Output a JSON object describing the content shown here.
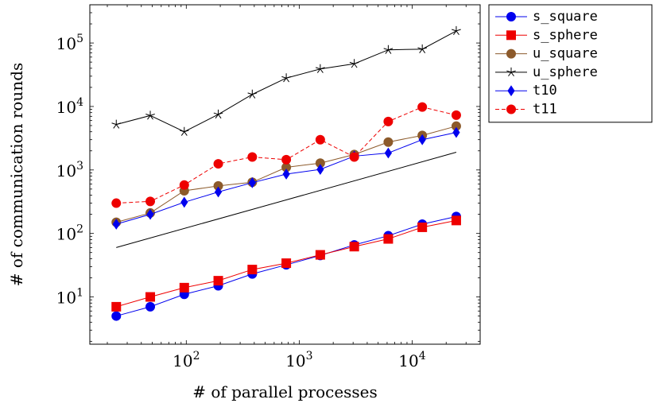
{
  "chart_data": {
    "type": "line",
    "xlabel": "# of parallel processes",
    "ylabel": "# of communication rounds",
    "xscale": "log",
    "yscale": "log",
    "xlim": [
      14,
      40000
    ],
    "ylim": [
      1.8,
      400000
    ],
    "x_ticks": [
      {
        "value": 100,
        "base": "10",
        "exp": "2"
      },
      {
        "value": 1000,
        "base": "10",
        "exp": "3"
      },
      {
        "value": 10000,
        "base": "10",
        "exp": "4"
      }
    ],
    "y_ticks": [
      {
        "value": 10,
        "base": "10",
        "exp": "1"
      },
      {
        "value": 100,
        "base": "10",
        "exp": "2"
      },
      {
        "value": 1000,
        "base": "10",
        "exp": "3"
      },
      {
        "value": 10000,
        "base": "10",
        "exp": "4"
      },
      {
        "value": 100000,
        "base": "10",
        "exp": "5"
      }
    ],
    "legend_position": "outside-right-top",
    "x": [
      24,
      48,
      96,
      192,
      384,
      768,
      1536,
      3072,
      6144,
      12288,
      24576
    ],
    "series": [
      {
        "name": "s_square",
        "color": "#0000ee",
        "marker": "circle",
        "dashed": false,
        "values": [
          5,
          7,
          11,
          15,
          23,
          32,
          45,
          66,
          92,
          140,
          185
        ]
      },
      {
        "name": "s_sphere",
        "color": "#ee0000",
        "marker": "square",
        "dashed": false,
        "values": [
          7,
          10,
          14,
          18,
          27,
          34,
          46,
          62,
          82,
          125,
          160
        ]
      },
      {
        "name": "u_square",
        "color": "#8c5a2b",
        "marker": "circle",
        "dashed": false,
        "values": [
          150,
          210,
          470,
          560,
          640,
          1100,
          1280,
          1750,
          2750,
          3500,
          4900
        ]
      },
      {
        "name": "u_sphere",
        "color": "#000000",
        "marker": "star",
        "dashed": false,
        "values": [
          5200,
          7200,
          4000,
          7500,
          15500,
          28000,
          39000,
          47000,
          78000,
          80000,
          155000
        ]
      },
      {
        "name": "t10",
        "color": "#0000ee",
        "marker": "diamond",
        "dashed": false,
        "values": [
          140,
          200,
          310,
          450,
          630,
          860,
          1020,
          1650,
          1850,
          3000,
          3900
        ]
      },
      {
        "name": "t11",
        "color": "#ee0000",
        "marker": "circle",
        "dashed": true,
        "values": [
          300,
          320,
          580,
          1250,
          1600,
          1450,
          3000,
          1600,
          5800,
          9800,
          7300
        ]
      }
    ],
    "reference_line": {
      "color": "#000000",
      "x": [
        24,
        24576
      ],
      "y": [
        60,
        1900
      ]
    }
  }
}
